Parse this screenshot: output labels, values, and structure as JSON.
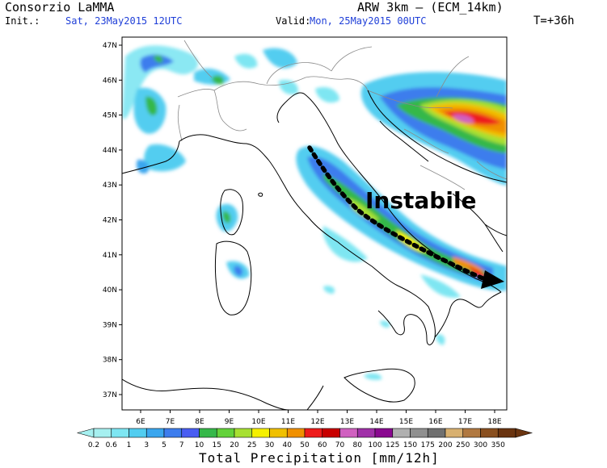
{
  "header": {
    "org": "Consorzio LaMMA",
    "model": "ARW 3km – (ECM_14km)",
    "init_label": "Init.:",
    "init_value": "Sat, 23May2015 12UTC",
    "valid_label": "Valid:",
    "valid_value": "Mon, 25May2015 00UTC",
    "lead_time": "T=+36h"
  },
  "map": {
    "annotation": "Instabile",
    "lat_ticks": [
      "47N",
      "46N",
      "45N",
      "44N",
      "43N",
      "42N",
      "41N",
      "40N",
      "39N",
      "38N",
      "37N"
    ],
    "lon_ticks": [
      "6E",
      "7E",
      "8E",
      "9E",
      "10E",
      "11E",
      "12E",
      "13E",
      "14E",
      "15E",
      "16E",
      "17E",
      "18E"
    ],
    "arrow": "dotted-arrow-southeast"
  },
  "legend": {
    "title": "Total Precipitation [mm/12h]",
    "labels": [
      "0.2",
      "0.6",
      "1",
      "3",
      "5",
      "7",
      "10",
      "15",
      "20",
      "25",
      "30",
      "40",
      "50",
      "60",
      "70",
      "80",
      "100",
      "125",
      "150",
      "175",
      "200",
      "250",
      "300",
      "350"
    ],
    "colors": [
      "#a6f0f0",
      "#7ee6f2",
      "#52cdf0",
      "#3aa6ee",
      "#3d7ded",
      "#4a5ef2",
      "#36b84a",
      "#63d23a",
      "#a7e032",
      "#f5f000",
      "#f0c000",
      "#f09000",
      "#ee1b1b",
      "#c80000",
      "#d060c0",
      "#a030a8",
      "#8a0890",
      "#b0b0b0",
      "#909090",
      "#707070",
      "#d8b070",
      "#b07840",
      "#8a5020",
      "#6a3410"
    ]
  }
}
